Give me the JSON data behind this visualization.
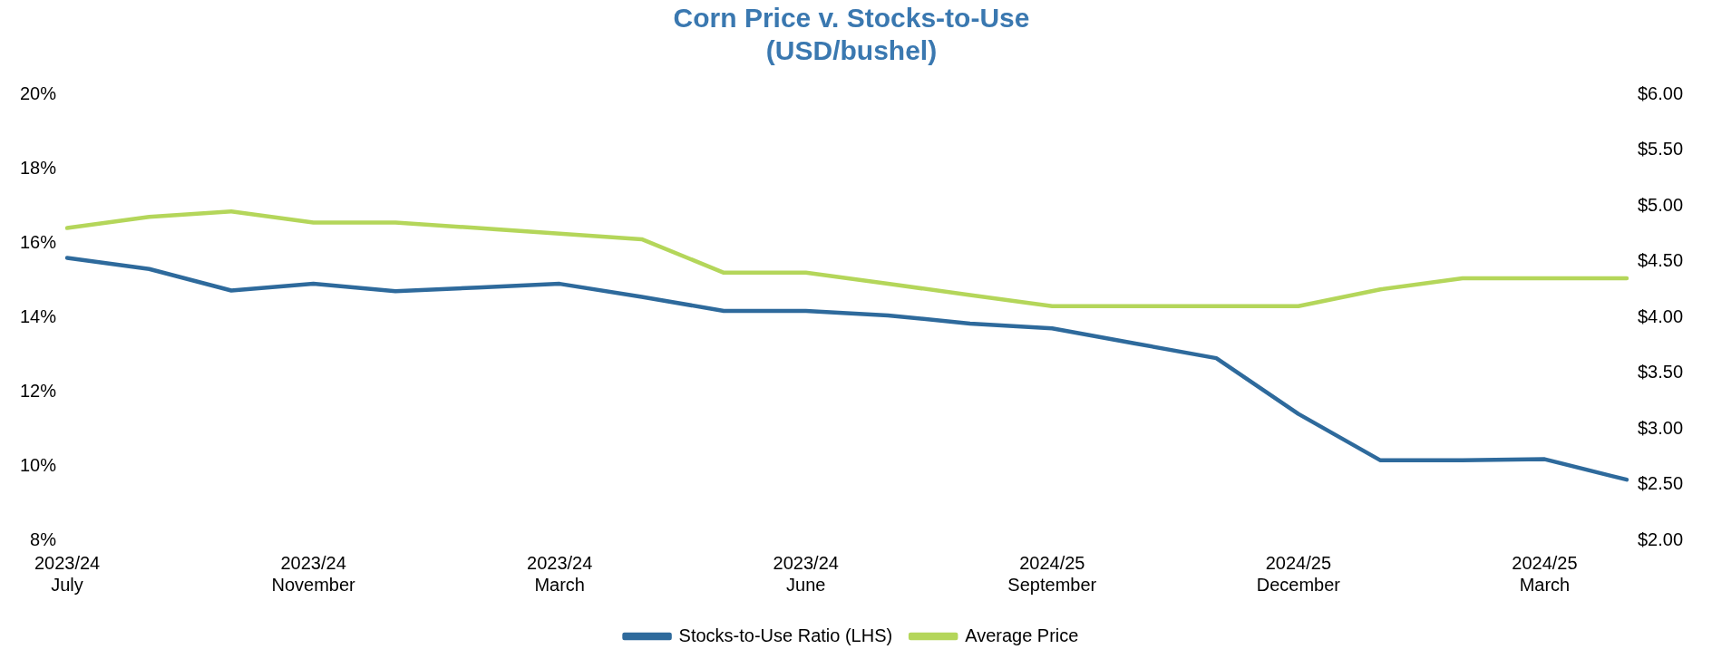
{
  "chart_data": {
    "type": "line",
    "title": "Corn Price v. Stocks-to-Use",
    "subtitle": "(USD/bushel)",
    "categories": [
      "2023/24\nJuly",
      null,
      null,
      "2023/24\nNovember",
      null,
      null,
      "2023/24\nMarch",
      null,
      null,
      "2023/24\nJune",
      null,
      null,
      "2024/25\nSeptember",
      null,
      null,
      "2024/25\nDecember",
      null,
      null,
      "2024/25\nMarch",
      null
    ],
    "series": [
      {
        "name": "Stocks-to-Use Ratio (LHS)",
        "color": "#2e6a9c",
        "values": [
          15.6,
          15.3,
          14.72,
          14.9,
          14.7,
          14.8,
          14.9,
          14.55,
          14.17,
          14.17,
          14.05,
          13.83,
          13.7,
          13.3,
          12.9,
          11.4,
          10.15,
          10.15,
          10.18,
          9.63
        ]
      },
      {
        "name": "Average Price",
        "color": "#b4d65a",
        "axis": "y2",
        "values": [
          4.8,
          4.9,
          4.95,
          4.85,
          4.85,
          4.8,
          4.75,
          4.7,
          4.4,
          4.4,
          4.3,
          4.2,
          4.1,
          4.1,
          4.1,
          4.1,
          4.25,
          4.35,
          4.35,
          4.35
        ]
      }
    ],
    "ylim": [
      8,
      20
    ],
    "yticks": [
      {
        "value": 8,
        "label": "8%"
      },
      {
        "value": 10,
        "label": "10%"
      },
      {
        "value": 12,
        "label": "12%"
      },
      {
        "value": 14,
        "label": "14%"
      },
      {
        "value": 16,
        "label": "16%"
      },
      {
        "value": 18,
        "label": "18%"
      },
      {
        "value": 20,
        "label": "20%"
      }
    ],
    "y2lim": [
      2,
      6
    ],
    "y2ticks": [
      {
        "value": 2,
        "label": "$2.00"
      },
      {
        "value": 2.5,
        "label": "$2.50"
      },
      {
        "value": 3,
        "label": "$3.00"
      },
      {
        "value": 3.5,
        "label": "$3.50"
      },
      {
        "value": 4,
        "label": "$4.00"
      },
      {
        "value": 4.5,
        "label": "$4.50"
      },
      {
        "value": 5,
        "label": "$5.00"
      },
      {
        "value": 5.5,
        "label": "$5.50"
      },
      {
        "value": 6,
        "label": "$6.00"
      }
    ],
    "grid": false,
    "legend": "bottom",
    "marker": "none",
    "line_style": "solid"
  }
}
